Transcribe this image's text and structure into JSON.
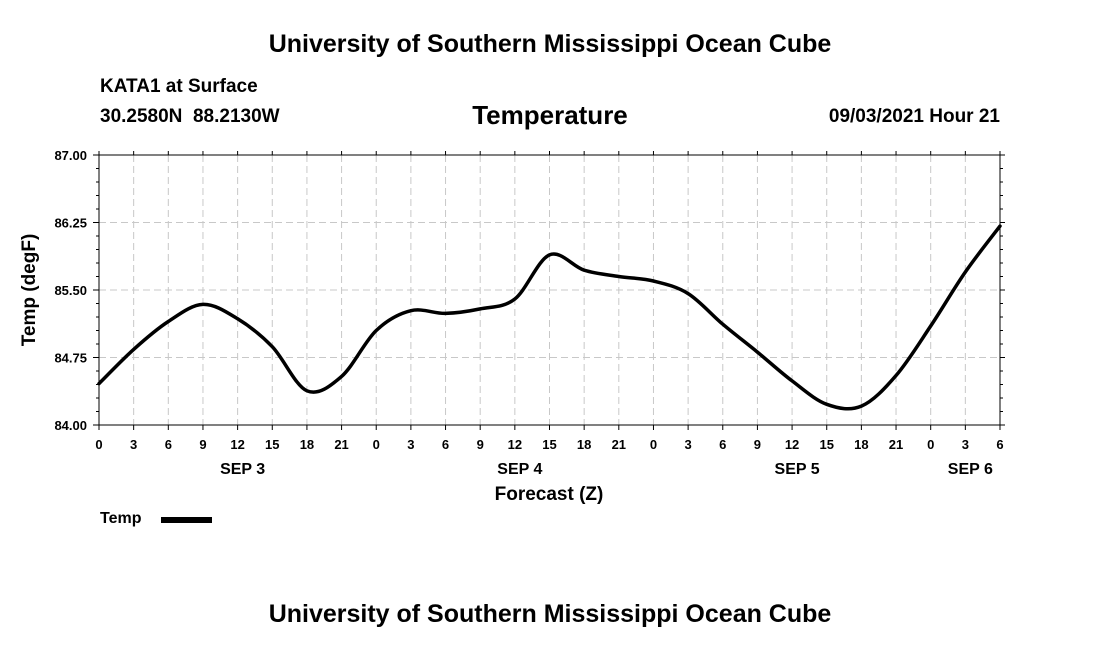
{
  "header": {
    "title": "University of Southern Mississippi Ocean Cube",
    "station": "KATA1 at Surface",
    "coordinates": "30.2580N  88.2130W",
    "variable": "Temperature",
    "datetime": "09/03/2021 Hour 21"
  },
  "footer": {
    "title": "University of Southern Mississippi Ocean Cube"
  },
  "legend": {
    "label": "Temp"
  },
  "chart_data": {
    "type": "line",
    "title": "Temperature",
    "xlabel": "Forecast (Z)",
    "ylabel": "Temp (degF)",
    "ylim": [
      84.0,
      87.0
    ],
    "yticks": [
      "84.00",
      "84.75",
      "85.50",
      "86.25",
      "87.00"
    ],
    "x_unit": "hours since SEP 3 00Z",
    "xlim": [
      0,
      78
    ],
    "xticks": [
      {
        "hour": 0,
        "label": "0"
      },
      {
        "hour": 3,
        "label": "3"
      },
      {
        "hour": 6,
        "label": "6"
      },
      {
        "hour": 9,
        "label": "9"
      },
      {
        "hour": 12,
        "label": "12"
      },
      {
        "hour": 15,
        "label": "15"
      },
      {
        "hour": 18,
        "label": "18"
      },
      {
        "hour": 21,
        "label": "21"
      },
      {
        "hour": 24,
        "label": "0"
      },
      {
        "hour": 27,
        "label": "3"
      },
      {
        "hour": 30,
        "label": "6"
      },
      {
        "hour": 33,
        "label": "9"
      },
      {
        "hour": 36,
        "label": "12"
      },
      {
        "hour": 39,
        "label": "15"
      },
      {
        "hour": 42,
        "label": "18"
      },
      {
        "hour": 45,
        "label": "21"
      },
      {
        "hour": 48,
        "label": "0"
      },
      {
        "hour": 51,
        "label": "3"
      },
      {
        "hour": 54,
        "label": "6"
      },
      {
        "hour": 57,
        "label": "9"
      },
      {
        "hour": 60,
        "label": "12"
      },
      {
        "hour": 63,
        "label": "15"
      },
      {
        "hour": 66,
        "label": "18"
      },
      {
        "hour": 69,
        "label": "21"
      },
      {
        "hour": 72,
        "label": "0"
      },
      {
        "hour": 75,
        "label": "3"
      },
      {
        "hour": 78,
        "label": "6"
      }
    ],
    "day_labels": [
      {
        "hour": 12,
        "label": "SEP 3"
      },
      {
        "hour": 36,
        "label": "SEP 4"
      },
      {
        "hour": 60,
        "label": "SEP 5"
      },
      {
        "hour": 75,
        "label": "SEP 6"
      }
    ],
    "grid": true,
    "series": [
      {
        "name": "Temp",
        "color": "#000000",
        "points": [
          [
            0,
            84.46
          ],
          [
            3,
            84.84
          ],
          [
            6,
            85.15
          ],
          [
            9,
            85.34
          ],
          [
            12,
            85.18
          ],
          [
            15,
            84.87
          ],
          [
            18,
            84.38
          ],
          [
            21,
            84.54
          ],
          [
            24,
            85.05
          ],
          [
            27,
            85.27
          ],
          [
            30,
            85.24
          ],
          [
            33,
            85.29
          ],
          [
            36,
            85.4
          ],
          [
            39,
            85.89
          ],
          [
            42,
            85.72
          ],
          [
            45,
            85.65
          ],
          [
            48,
            85.6
          ],
          [
            51,
            85.46
          ],
          [
            54,
            85.12
          ],
          [
            57,
            84.81
          ],
          [
            60,
            84.49
          ],
          [
            63,
            84.23
          ],
          [
            66,
            84.21
          ],
          [
            69,
            84.55
          ],
          [
            72,
            85.1
          ],
          [
            75,
            85.7
          ],
          [
            78,
            86.21
          ]
        ]
      }
    ]
  }
}
